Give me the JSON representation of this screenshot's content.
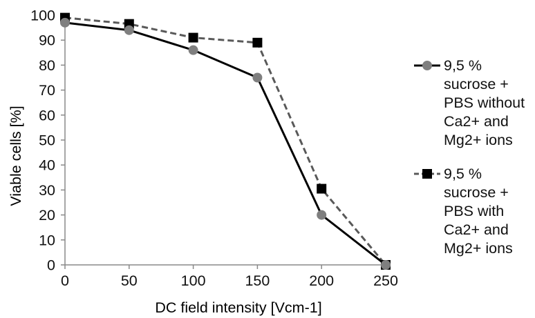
{
  "chart_data": {
    "type": "line",
    "xlabel": "DC field intensity [Vcm-1]",
    "ylabel": "Viable cells [%]",
    "x": [
      0,
      50,
      100,
      150,
      200,
      250
    ],
    "xlim": [
      0,
      250
    ],
    "ylim": [
      0,
      100
    ],
    "xticks": [
      "0",
      "50",
      "100",
      "150",
      "200",
      "250"
    ],
    "yticks": [
      "0",
      "10",
      "20",
      "30",
      "40",
      "50",
      "60",
      "70",
      "80",
      "90",
      "100"
    ],
    "grid": false,
    "legend_position": "right",
    "series": [
      {
        "name": "9,5 % sucrose + PBS without Ca2+ and Mg2+ ions",
        "label_lines": [
          "9,5 %",
          "sucrose +",
          "PBS without",
          "Ca2+ and",
          "Mg2+ ions"
        ],
        "values": [
          97,
          94,
          86,
          75,
          20,
          0
        ],
        "line_color": "#000000",
        "marker_color": "#7f7f7f",
        "marker": "circle",
        "line_style": "solid"
      },
      {
        "name": "9,5 % sucrose + PBS with Ca2+ and Mg2+ ions",
        "label_lines": [
          "9,5 %",
          "sucrose +",
          "PBS with",
          "Ca2+ and",
          "Mg2+ ions"
        ],
        "values": [
          99,
          96.5,
          91,
          89,
          30.5,
          0
        ],
        "line_color": "#595959",
        "marker_color": "#000000",
        "marker": "square",
        "line_style": "dashed"
      }
    ]
  }
}
